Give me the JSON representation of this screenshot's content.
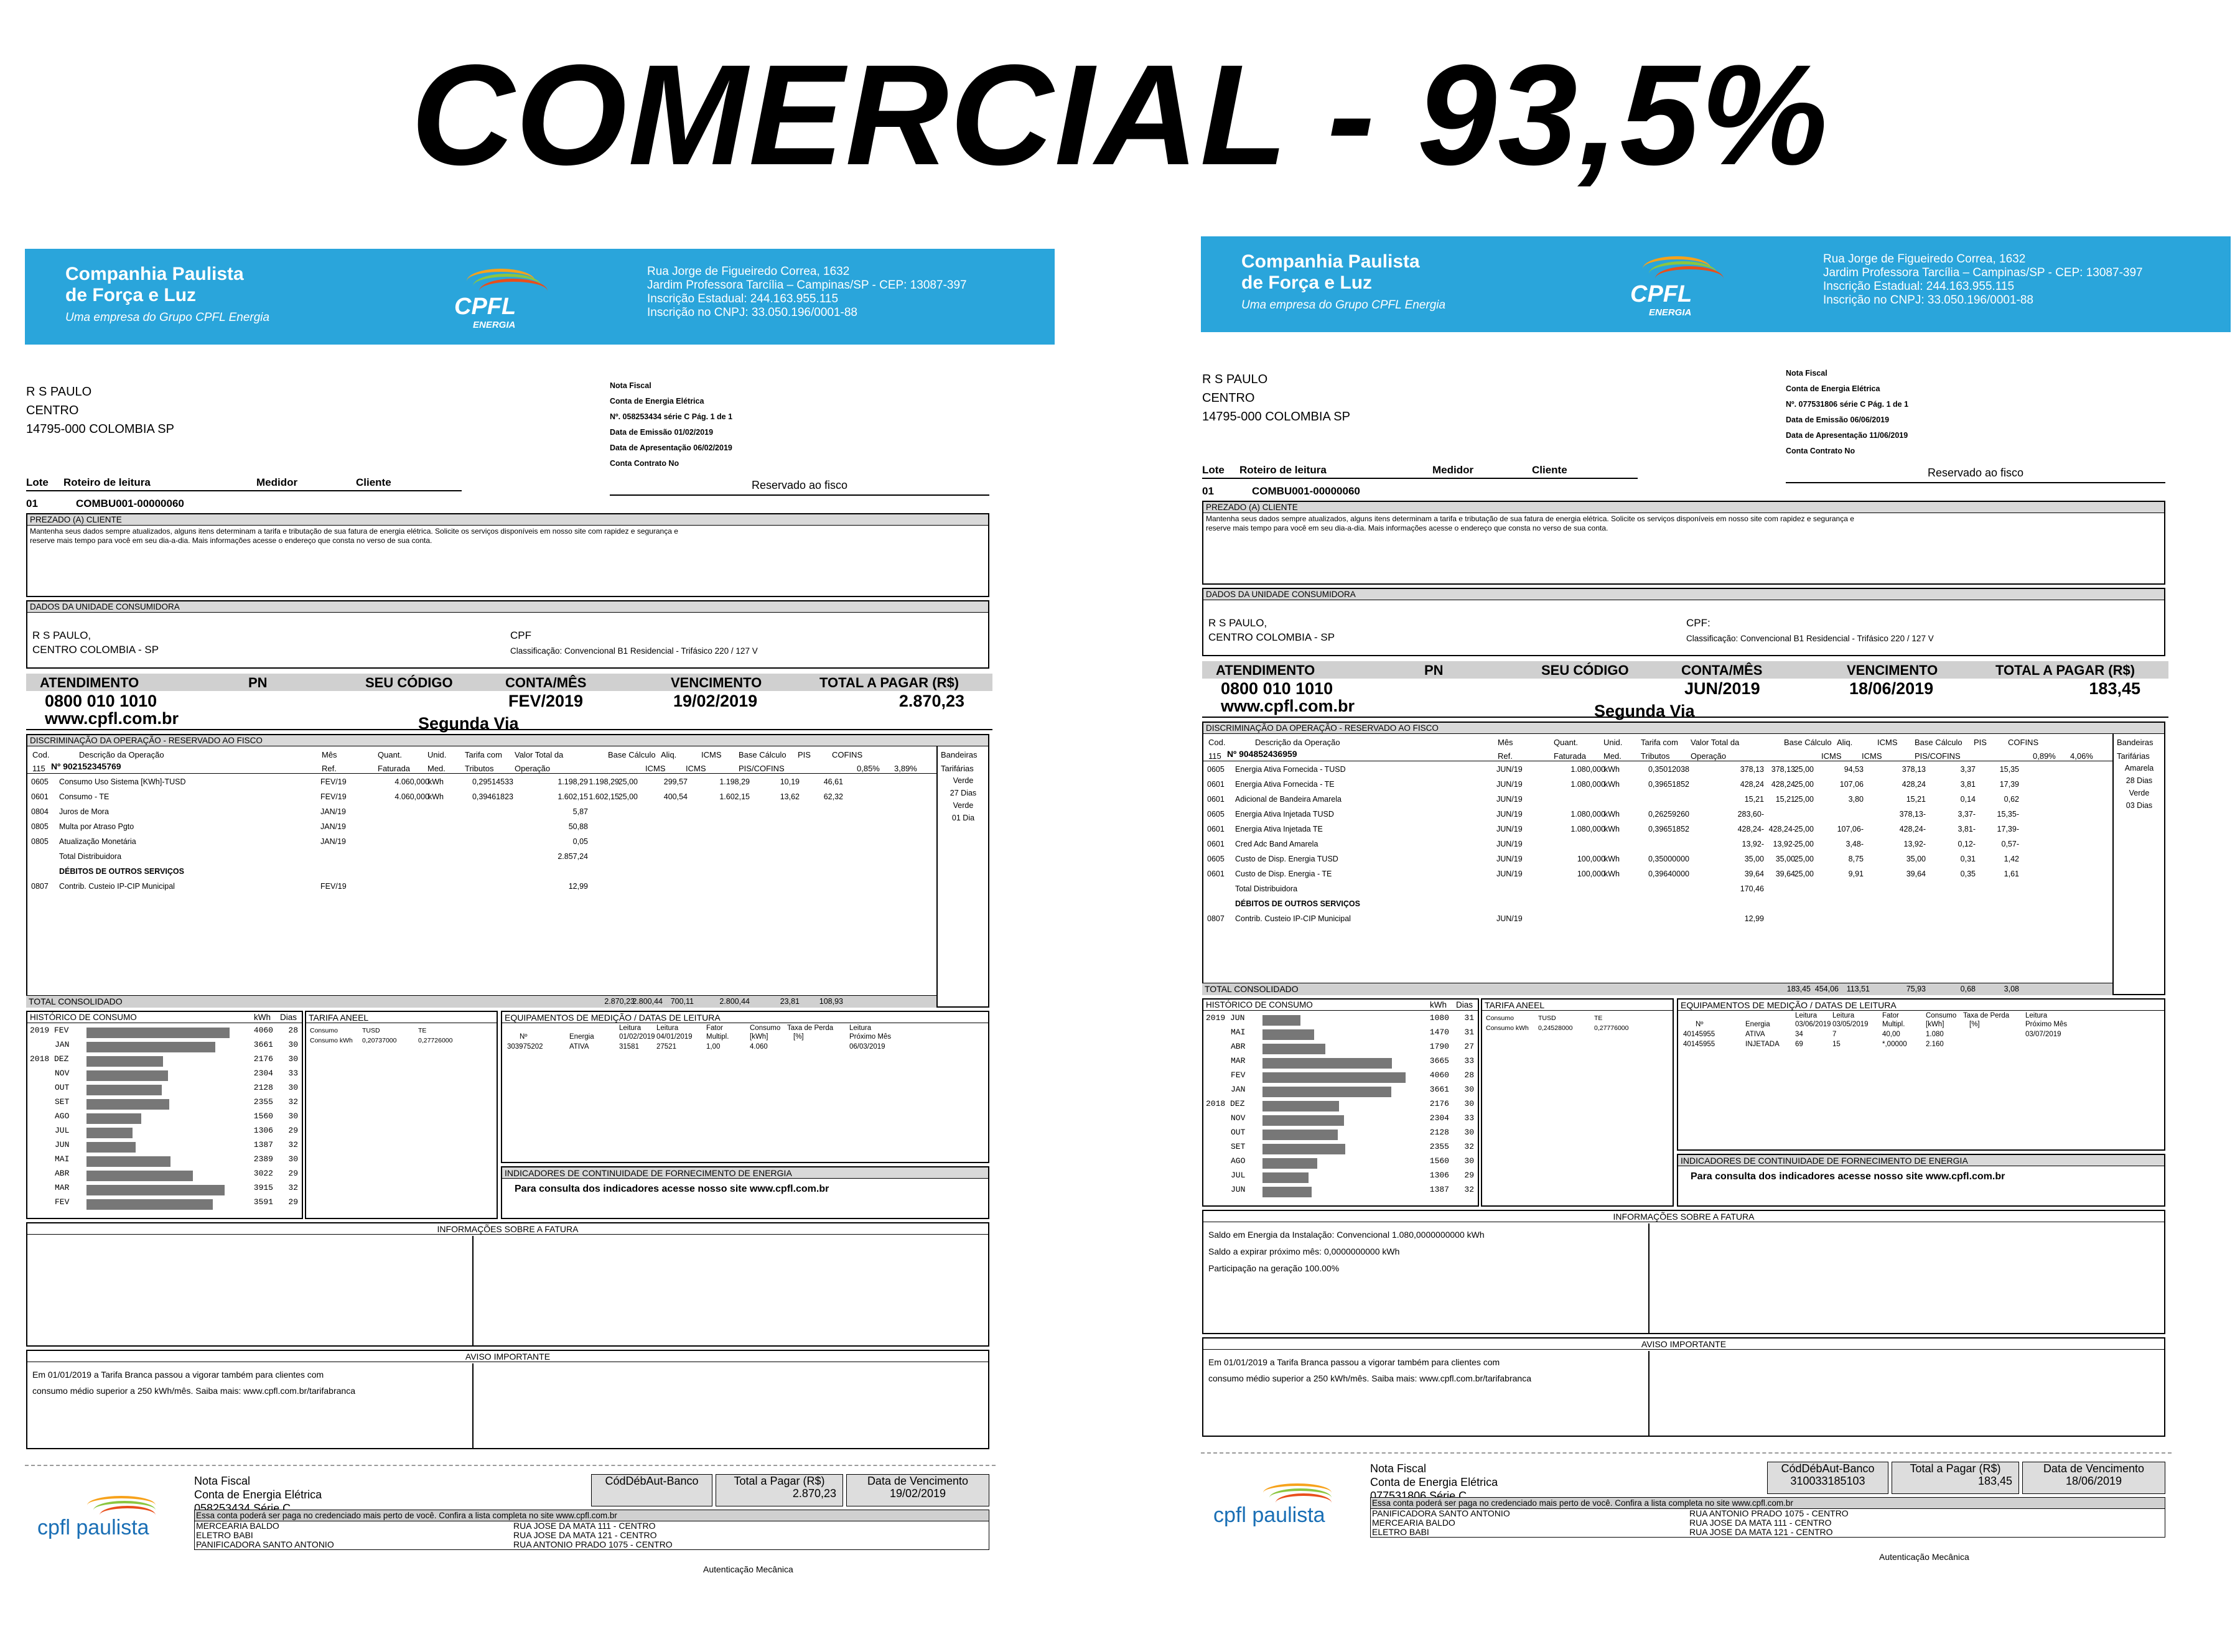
{
  "title": "COMERCIAL - 93,5%",
  "company": {
    "name1": "Companhia Paulista",
    "name2": "de Força e Luz",
    "group": "Uma empresa do Grupo CPFL Energia",
    "logo": "CPFL",
    "logo_sub": "ENERGIA",
    "addr": [
      "Rua Jorge de Figueiredo Correa, 1632",
      "Jardim Professora Tarcília – Campinas/SP - CEP: 13087-397",
      "Inscrição Estadual: 244.163.955.115",
      "Inscrição no CNPJ: 33.050.196/0001-88"
    ]
  },
  "labels": {
    "lote": "Lote",
    "roteiro": "Roteiro de leitura",
    "medidor": "Medidor",
    "cliente": "Cliente",
    "reservado": "Reservado ao fisco",
    "prezado": "PREZADO (A)  CLIENTE",
    "prezado_text1": "Mantenha seus dados sempre atualizados, alguns itens determinam a tarifa e tributação de sua fatura de energia elétrica. Solicite os serviços disponíveis em nosso site com rapidez e segurança e",
    "prezado_text2": "reserve mais tempo para você em seu dia-a-dia. Mais informações acesse o endereço que consta no verso de sua conta.",
    "dados": "DADOS DA UNIDADE CONSUMIDORA",
    "classif": "Classificação: Convencional B1 Residencial - Trifásico 220 / 127 V",
    "atendimento": "ATENDIMENTO",
    "pn": "PN",
    "seu_codigo": "SEU CÓDIGO",
    "conta_mes": "CONTA/MÊS",
    "vencimento": "VENCIMENTO",
    "total_pagar": "TOTAL A PAGAR (R$)",
    "phone": "0800 010 1010",
    "site": "www.cpfl.com.br",
    "segunda_via": "Segunda Via",
    "discrim": "DISCRIMINAÇÃO DA OPERAÇÃO - RESERVADO AO FISCO",
    "cols1": [
      "Cod.",
      "Descrição da Operação",
      "Mês",
      "Quant.",
      "Unid.",
      "Tarifa com",
      "Valor Total da",
      "Base Cálculo",
      "Aliq.",
      "ICMS",
      "Base Cálculo",
      "PIS",
      "COFINS",
      "Bandeiras"
    ],
    "cols2": [
      "Ref.",
      "Faturada",
      "Med.",
      "Tributos",
      "Operação",
      "ICMS",
      "ICMS",
      "PIS/COFINS",
      "Tarifárias"
    ],
    "total_consol": "TOTAL CONSOLIDADO",
    "historico": "HISTÓRICO DE CONSUMO",
    "kwh": "kWh",
    "dias": "Dias",
    "tarifa_aneel": "TARIFA ANEEL",
    "consumo": "Consumo",
    "consumo_kwh": "Consumo kWh",
    "tusd": "TUSD",
    "te": "TE",
    "equip": "EQUIPAMENTOS DE MEDIÇÃO / DATAS DE LEITURA",
    "equip_cols": [
      "Nº",
      "Energia",
      "Leitura",
      "Leitura",
      "Fator",
      "Consumo",
      "Taxa de Perda",
      "Leitura"
    ],
    "equip_cols2": [
      "Multipl.",
      "[kWh]",
      "[%]",
      "Próximo Mês"
    ],
    "indicadores": "INDICADORES DE CONTINUIDADE DE FORNECIMENTO DE ENERGIA",
    "indicadores_text": "Para consulta dos indicadores acesse nosso site www.cpfl.com.br",
    "info": "INFORMAÇÕES SOBRE A FATURA",
    "aviso": "AVISO IMPORTANTE",
    "aviso1": "Em 01/01/2019 a Tarifa Branca passou a vigorar também para clientes com",
    "aviso2": "consumo médio superior a 250 kWh/mês. Saiba mais: www.cpfl.com.br/tarifabranca",
    "nota_fiscal": "Nota Fiscal",
    "conta_energia": "Conta de Energia Elétrica",
    "cod_deb": "CódDébAut-Banco",
    "total_rs": "Total a Pagar (R$)",
    "data_venc": "Data de Vencimento",
    "lista": "Essa conta poderá ser paga no credenciado mais perto de você. Confira a lista completa no site www.cpfl.com.br",
    "autent": "Autenticação Mecânica",
    "cpfl_paulista": "cpfl paulista"
  },
  "bills": [
    {
      "name": "R S PAULO",
      "bairro": "CENTRO",
      "cep": "14795-000 COLOMBIA SP",
      "nf": [
        "Nota Fiscal",
        "Conta de Energia Elétrica",
        "Nº. 058253434 série C Pág. 1 de 1",
        "Data de Emissão 01/02/2019",
        "Data de Apresentação  06/02/2019",
        "Conta Contrato No"
      ],
      "lote_val": "01",
      "roteiro_val": "COMBU001-00000060",
      "unit_name": "R S PAULO,",
      "unit_city": "CENTRO COLOMBIA - SP",
      "cpf": "CPF",
      "conta_mes": "FEV/2019",
      "venc": "19/02/2019",
      "total": "2.870,23",
      "nnum": "Nº  902152345769",
      "cod115": "115",
      "pis_rate": "0,85%",
      "cofins_rate": "3,89%",
      "band": [
        "Verde",
        "27 Dias",
        "Verde",
        "01 Dia"
      ],
      "rows": [
        [
          "0605",
          "Consumo Uso Sistema [KWh]-TUSD",
          "FEV/19",
          "4.060,000",
          "kWh",
          "0,29514533",
          "1.198,29",
          "1.198,29",
          "25,00",
          "299,57",
          "1.198,29",
          "10,19",
          "46,61"
        ],
        [
          "0601",
          "Consumo - TE",
          "FEV/19",
          "4.060,000",
          "kWh",
          "0,39461823",
          "1.602,15",
          "1.602,15",
          "25,00",
          "400,54",
          "1.602,15",
          "13,62",
          "62,32"
        ],
        [
          "0804",
          "Juros de Mora",
          "JAN/19",
          "",
          "",
          "",
          "5,87",
          "",
          "",
          "",
          "",
          "",
          ""
        ],
        [
          "0805",
          "Multa por Atraso Pgto",
          "JAN/19",
          "",
          "",
          "",
          "50,88",
          "",
          "",
          "",
          "",
          "",
          ""
        ],
        [
          "0805",
          "Atualização Monetária",
          "JAN/19",
          "",
          "",
          "",
          "0,05",
          "",
          "",
          "",
          "",
          "",
          ""
        ],
        [
          "",
          "Total Distribuidora",
          "",
          "",
          "",
          "",
          "2.857,24",
          "",
          "",
          "",
          "",
          "",
          ""
        ],
        [
          "",
          "DÉBITOS DE OUTROS SERVIÇOS",
          "",
          "",
          "",
          "",
          "",
          "",
          "",
          "",
          "",
          "",
          ""
        ],
        [
          "0807",
          "Contrib. Custeio IP-CIP Municipal",
          "FEV/19",
          "",
          "",
          "",
          "12,99",
          "",
          "",
          "",
          "",
          "",
          ""
        ]
      ],
      "totals": [
        "2.870,23",
        "2.800,44",
        "700,11",
        "2.800,44",
        "23,81",
        "108,93"
      ],
      "hist": [
        [
          "2019 FEV",
          "4060",
          "28"
        ],
        [
          "JAN",
          "3661",
          "30"
        ],
        [
          "2018 DEZ",
          "2176",
          "30"
        ],
        [
          "NOV",
          "2304",
          "33"
        ],
        [
          "OUT",
          "2128",
          "30"
        ],
        [
          "SET",
          "2355",
          "32"
        ],
        [
          "AGO",
          "1560",
          "30"
        ],
        [
          "JUL",
          "1306",
          "29"
        ],
        [
          "JUN",
          "1387",
          "32"
        ],
        [
          "MAI",
          "2389",
          "30"
        ],
        [
          "ABR",
          "3022",
          "29"
        ],
        [
          "MAR",
          "3915",
          "32"
        ],
        [
          "FEV",
          "3591",
          "29"
        ]
      ],
      "tarifa": [
        "0,20737000",
        "0,27726000"
      ],
      "equip": [
        [
          "303975202",
          "ATIVA",
          "31581",
          "27521",
          "1,00",
          "4.060",
          "",
          "06/03/2019"
        ]
      ],
      "equip_dates": [
        "01/02/2019",
        "04/01/2019"
      ],
      "info_lines": [],
      "nf_num": "058253434 Série C",
      "codbanco": "",
      "stores": [
        [
          "MERCEARIA BALDO",
          "RUA JOSE DA MATA 111 - CENTRO"
        ],
        [
          "ELETRO BABI",
          "RUA JOSE DA MATA 121 - CENTRO"
        ],
        [
          "PANIFICADORA SANTO ANTONIO",
          "RUA ANTONIO PRADO 1075 - CENTRO"
        ]
      ]
    },
    {
      "name": "R S PAULO",
      "bairro": "CENTRO",
      "cep": "14795-000 COLOMBIA SP",
      "nf": [
        "Nota Fiscal",
        "Conta de Energia Elétrica",
        "Nº. 077531806 série C Pág. 1 de 1",
        "Data de Emissão 06/06/2019",
        "Data de Apresentação  11/06/2019",
        "Conta Contrato No"
      ],
      "lote_val": "01",
      "roteiro_val": "COMBU001-00000060",
      "unit_name": "R S PAULO,",
      "unit_city": "CENTRO COLOMBIA - SP",
      "cpf": "CPF:",
      "conta_mes": "JUN/2019",
      "venc": "18/06/2019",
      "total": "183,45",
      "nnum": "Nº  904852436959",
      "cod115": "115",
      "pis_rate": "0,89%",
      "cofins_rate": "4,06%",
      "band": [
        "Amarela",
        "28 Dias",
        "Verde",
        "03 Dias"
      ],
      "rows": [
        [
          "0605",
          "Energia Ativa Fornecida - TUSD",
          "JUN/19",
          "1.080,000",
          "kWh",
          "0,35012038",
          "378,13",
          "378,13",
          "25,00",
          "94,53",
          "378,13",
          "3,37",
          "15,35"
        ],
        [
          "0601",
          "Energia Ativa Fornecida - TE",
          "JUN/19",
          "1.080,000",
          "kWh",
          "0,39651852",
          "428,24",
          "428,24",
          "25,00",
          "107,06",
          "428,24",
          "3,81",
          "17,39"
        ],
        [
          "0601",
          "Adicional de Bandeira Amarela",
          "JUN/19",
          "",
          "",
          "",
          "15,21",
          "15,21",
          "25,00",
          "3,80",
          "15,21",
          "0,14",
          "0,62"
        ],
        [
          "0605",
          "Energia Ativa Injetada TUSD",
          "JUN/19",
          "1.080,000",
          "kWh",
          "0,26259260",
          "283,60-",
          "",
          "",
          "",
          "378,13-",
          "3,37-",
          "15,35-"
        ],
        [
          "0601",
          "Energia Ativa Injetada TE",
          "JUN/19",
          "1.080,000",
          "kWh",
          "0,39651852",
          "428,24-",
          "428,24-",
          "25,00",
          "107,06-",
          "428,24-",
          "3,81-",
          "17,39-"
        ],
        [
          "0601",
          "Cred Adc Band Amarela",
          "JUN/19",
          "",
          "",
          "",
          "13,92-",
          "13,92-",
          "25,00",
          "3,48-",
          "13,92-",
          "0,12-",
          "0,57-"
        ],
        [
          "0605",
          "Custo de Disp. Energia TUSD",
          "JUN/19",
          "100,000",
          "kWh",
          "0,35000000",
          "35,00",
          "35,00",
          "25,00",
          "8,75",
          "35,00",
          "0,31",
          "1,42"
        ],
        [
          "0601",
          "Custo de Disp. Energia - TE",
          "JUN/19",
          "100,000",
          "kWh",
          "0,39640000",
          "39,64",
          "39,64",
          "25,00",
          "9,91",
          "39,64",
          "0,35",
          "1,61"
        ],
        [
          "",
          "Total Distribuidora",
          "",
          "",
          "",
          "",
          "170,46",
          "",
          "",
          "",
          "",
          "",
          ""
        ],
        [
          "",
          "DÉBITOS DE OUTROS SERVIÇOS",
          "",
          "",
          "",
          "",
          "",
          "",
          "",
          "",
          "",
          "",
          ""
        ],
        [
          "0807",
          "Contrib. Custeio IP-CIP Municipal",
          "JUN/19",
          "",
          "",
          "",
          "12,99",
          "",
          "",
          "",
          "",
          "",
          ""
        ]
      ],
      "totals": [
        "183,45",
        "454,06",
        "113,51",
        "75,93",
        "0,68",
        "3,08"
      ],
      "hist": [
        [
          "2019 JUN",
          "1080",
          "31"
        ],
        [
          "MAI",
          "1470",
          "31"
        ],
        [
          "ABR",
          "1790",
          "27"
        ],
        [
          "MAR",
          "3665",
          "33"
        ],
        [
          "FEV",
          "4060",
          "28"
        ],
        [
          "JAN",
          "3661",
          "30"
        ],
        [
          "2018 DEZ",
          "2176",
          "30"
        ],
        [
          "NOV",
          "2304",
          "33"
        ],
        [
          "OUT",
          "2128",
          "30"
        ],
        [
          "SET",
          "2355",
          "32"
        ],
        [
          "AGO",
          "1560",
          "30"
        ],
        [
          "JUL",
          "1306",
          "29"
        ],
        [
          "JUN",
          "1387",
          "32"
        ]
      ],
      "tarifa": [
        "0,24528000",
        "0,27776000"
      ],
      "equip": [
        [
          "40145955",
          "ATIVA",
          "34",
          "7",
          "40,00",
          "1.080",
          "",
          "03/07/2019"
        ],
        [
          "40145955",
          "INJETADA",
          "69",
          "15",
          "*,00000",
          "2.160",
          "",
          ""
        ]
      ],
      "equip_dates": [
        "03/06/2019",
        "03/05/2019"
      ],
      "info_lines": [
        "Saldo em Energia da Instalação: Convencional 1.080,0000000000 kWh",
        "Saldo a expirar próximo mês: 0,0000000000 kWh",
        "Participação na geração 100.00%"
      ],
      "nf_num": "077531806 Série C",
      "codbanco": "310033185103",
      "stores": [
        [
          "PANIFICADORA SANTO ANTONIO",
          "RUA ANTONIO PRADO 1075 - CENTRO"
        ],
        [
          "MERCEARIA BALDO",
          "RUA JOSE DA MATA 111 - CENTRO"
        ],
        [
          "ELETRO BABI",
          "RUA JOSE DA MATA 121 - CENTRO"
        ]
      ]
    }
  ]
}
